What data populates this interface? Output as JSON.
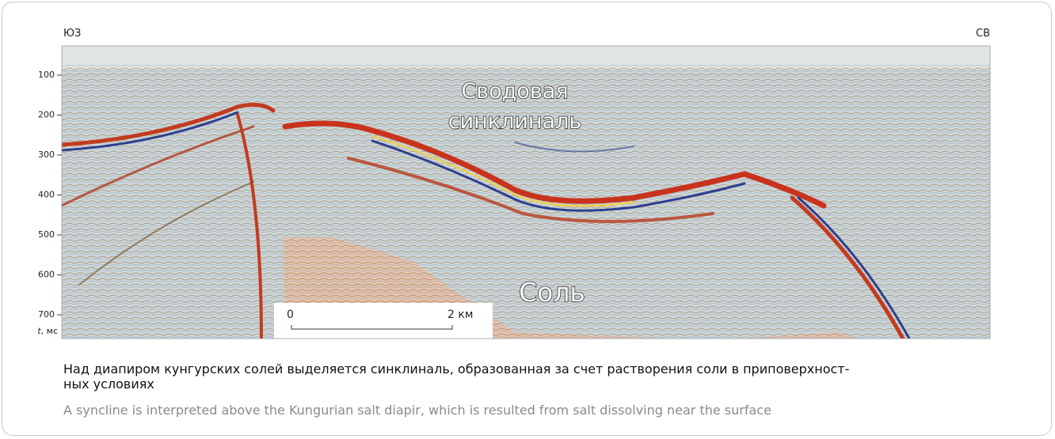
{
  "figure": {
    "direction_left": "ЮЗ",
    "direction_right": "СВ",
    "axis": {
      "ticks": [
        100,
        200,
        300,
        400,
        500,
        600,
        700
      ],
      "label_variable": "t",
      "label_unit": ", мс"
    },
    "labels": {
      "syncline_line1": "Сводовая",
      "syncline_line2": "синклиналь",
      "salt": "Соль"
    },
    "scale_bar": {
      "start": "0",
      "end": "2 км"
    }
  },
  "caption": {
    "ru": [
      "Над диапиром кунгурских солей выделяется синклиналь, образованная за счет растворения соли в приповерхност-",
      "ных условиях"
    ],
    "en": "A syncline is interpreted above the Kungurian salt diapir, which is resulted from salt dissolving near the surface"
  }
}
